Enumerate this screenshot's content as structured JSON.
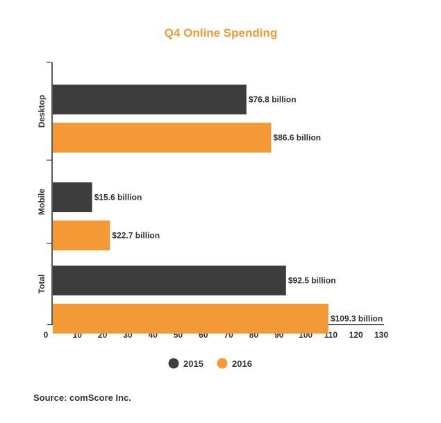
{
  "chart_data": {
    "type": "bar",
    "orientation": "horizontal",
    "title": "Q4 Online Spending",
    "categories": [
      "Desktop",
      "Mobile",
      "Total"
    ],
    "series": [
      {
        "name": "2015",
        "values": [
          76.8,
          15.6,
          92.5
        ],
        "labels": [
          "$76.8 billion",
          "$15.6 billion",
          "$92.5 billion"
        ]
      },
      {
        "name": "2016",
        "values": [
          86.6,
          22.7,
          109.3
        ],
        "labels": [
          "$86.6 billion",
          "$22.7 billion",
          "$109.3 billion"
        ]
      }
    ],
    "xlim": [
      0,
      130
    ],
    "xticks": [
      "0",
      "10",
      "20",
      "30",
      "40",
      "50",
      "60",
      "70",
      "80",
      "90",
      "100",
      "110",
      "120",
      "130"
    ],
    "legend_placement": "bottom-center",
    "grid": false
  },
  "colors": {
    "series_2015": "#3d3d3d",
    "series_2016": "#f39a36",
    "title": "#f39a36",
    "axis": "#222222"
  },
  "source_text": "Source: comScore Inc."
}
